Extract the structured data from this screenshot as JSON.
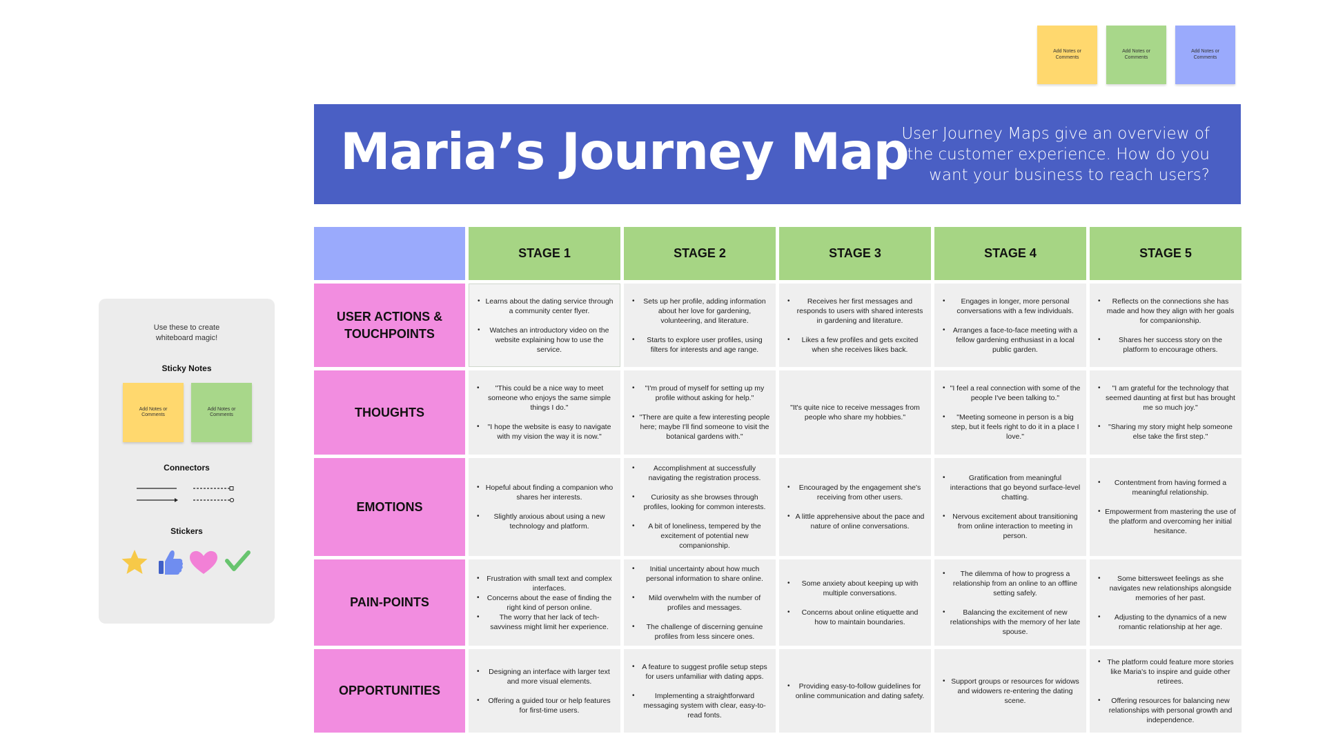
{
  "colors": {
    "banner": "#4a5fc4",
    "corner": "#9aaafc",
    "stage_header": "#a6d584",
    "row_header": "#f28de0",
    "cell": "#efefef",
    "sticky_yellow": "#ffd86e",
    "sticky_green": "#a8d78a",
    "sticky_blue": "#9aaafc"
  },
  "top_stickies": [
    {
      "text": "Add Notes or Comments",
      "color": "#ffd86e"
    },
    {
      "text": "Add Notes or Comments",
      "color": "#a8d78a"
    },
    {
      "text": "Add Notes or Comments",
      "color": "#9aaafc"
    }
  ],
  "banner": {
    "title": "Maria’s Journey Map",
    "description": "User Journey Maps give an overview of the customer experience. How do you want your business to reach users?"
  },
  "stages": [
    "STAGE 1",
    "STAGE 2",
    "STAGE 3",
    "STAGE 4",
    "STAGE 5"
  ],
  "rows": [
    {
      "label": "USER ACTIONS & TOUCHPOINTS",
      "cells": [
        [
          "Learns about the dating service through a community center flyer.",
          "Watches an introductory video on the website explaining how to use the service."
        ],
        [
          "Sets up her profile, adding information about her love for gardening, volunteering, and literature.",
          "Starts to explore user profiles, using filters for interests and age range."
        ],
        [
          "Receives her first messages and responds to users with shared interests in gardening and literature.",
          "Likes a few profiles and gets excited when she receives likes back."
        ],
        [
          "Engages in longer, more personal conversations with a few individuals.",
          "Arranges a face-to-face meeting with a fellow gardening enthusiast in a local public garden."
        ],
        [
          "Reflects on the connections she has made and how they align with her goals for companionship.",
          "Shares her success story on the platform to encourage others."
        ]
      ]
    },
    {
      "label": "THOUGHTS",
      "cells": [
        [
          "\"This could be a nice way to meet someone who enjoys the same simple things I do.\"",
          "\"I hope the website is easy to navigate with my vision the way it is now.\""
        ],
        [
          "\"I'm proud of myself for setting up my profile without asking for help.\"",
          "\"There are quite a few interesting people here; maybe I'll find someone to visit the botanical gardens with.\""
        ],
        [
          "\"It's quite nice to receive messages from people who share my hobbies.\""
        ],
        [
          "\"I feel a real connection with some of the people I've been talking to.\"",
          "\"Meeting someone in person is a big step, but it feels right to do it in a place I love.\""
        ],
        [
          "\"I am grateful for the technology that seemed daunting at first but has brought me so much joy.\"",
          "\"Sharing my story might help someone else take the first step.\""
        ]
      ]
    },
    {
      "label": "EMOTIONS",
      "cells": [
        [
          "Hopeful about finding a companion who shares her interests.",
          "Slightly anxious about using a new technology and platform."
        ],
        [
          "Accomplishment at successfully navigating the registration process.",
          "Curiosity as she browses through profiles, looking for common interests.",
          "A bit of loneliness, tempered by the excitement of potential new companionship."
        ],
        [
          "Encouraged by the engagement she's receiving from other users.",
          "A little apprehensive about the pace and nature of online conversations."
        ],
        [
          "Gratification from meaningful interactions that go beyond surface-level chatting.",
          "Nervous excitement about transitioning from online interaction to meeting in person."
        ],
        [
          "Contentment from having formed a meaningful relationship.",
          "Empowerment from mastering the use of the platform and overcoming her initial hesitance."
        ]
      ]
    },
    {
      "label": "PAIN-POINTS",
      "cells": [
        [
          "Frustration with small text and complex interfaces.",
          "Concerns about the ease of finding the right kind of person online.",
          "The worry that her lack of tech-savviness might limit her experience."
        ],
        [
          "Initial uncertainty about how much personal information to share online.",
          "Mild overwhelm with the number of profiles and messages.",
          "The challenge of discerning genuine profiles from less sincere ones."
        ],
        [
          "Some anxiety about keeping up with multiple conversations.",
          "Concerns about online etiquette and how to maintain boundaries."
        ],
        [
          "The dilemma of how to progress a relationship from an online to an offline setting safely.",
          "Balancing the excitement of new relationships with the memory of her late spouse."
        ],
        [
          "Some bittersweet feelings as she navigates new relationships alongside memories of her past.",
          "Adjusting to the dynamics of a new romantic relationship at her age."
        ]
      ]
    },
    {
      "label": "OPPORTUNITIES",
      "cells": [
        [
          "Designing an interface with larger text and more visual elements.",
          "Offering a guided tour or help features for first-time users."
        ],
        [
          "A feature to suggest profile setup steps for users unfamiliar with dating apps.",
          "Implementing a straightforward messaging system with clear, easy-to-read fonts."
        ],
        [
          "Providing easy-to-follow guidelines for online communication and dating safety."
        ],
        [
          "Support groups or resources for widows and widowers re-entering the dating scene."
        ],
        [
          "The platform could feature more stories like Maria's to inspire and guide other retirees.",
          "Offering resources for balancing new relationships with personal growth and independence."
        ]
      ]
    }
  ],
  "toolkit": {
    "intro": "Use these to create whiteboard magic!",
    "sticky_notes_heading": "Sticky Notes",
    "sticky_notes": [
      {
        "text": "Add Notes or Comments",
        "color": "#ffd86e"
      },
      {
        "text": "Add Notes or Comments",
        "color": "#a8d78a"
      }
    ],
    "connectors_heading": "Connectors",
    "stickers_heading": "Stickers",
    "stickers": [
      "star-icon",
      "thumbs-up-icon",
      "heart-icon",
      "checkmark-icon"
    ]
  }
}
